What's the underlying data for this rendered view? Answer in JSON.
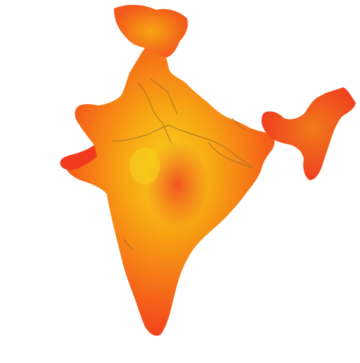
{
  "map": {
    "title": "",
    "colors": {
      "outer": "#f23a1e",
      "orange": "#f56a18",
      "amber": "#f7a512",
      "yellow": "#f7d21e",
      "core": "#f04020",
      "border": "#9a6a2a",
      "text": "#444444",
      "blue_text": "#4a5ab8"
    },
    "labels": [
      {
        "lines": [
          "",
          "",
          ""
        ]
      },
      {
        "lines": [
          "",
          "",
          ""
        ]
      },
      {
        "lines": [
          "",
          "",
          "",
          ""
        ]
      },
      {
        "lines": [
          "",
          "",
          ""
        ]
      },
      {
        "lines": [
          "",
          "",
          ""
        ]
      }
    ]
  }
}
